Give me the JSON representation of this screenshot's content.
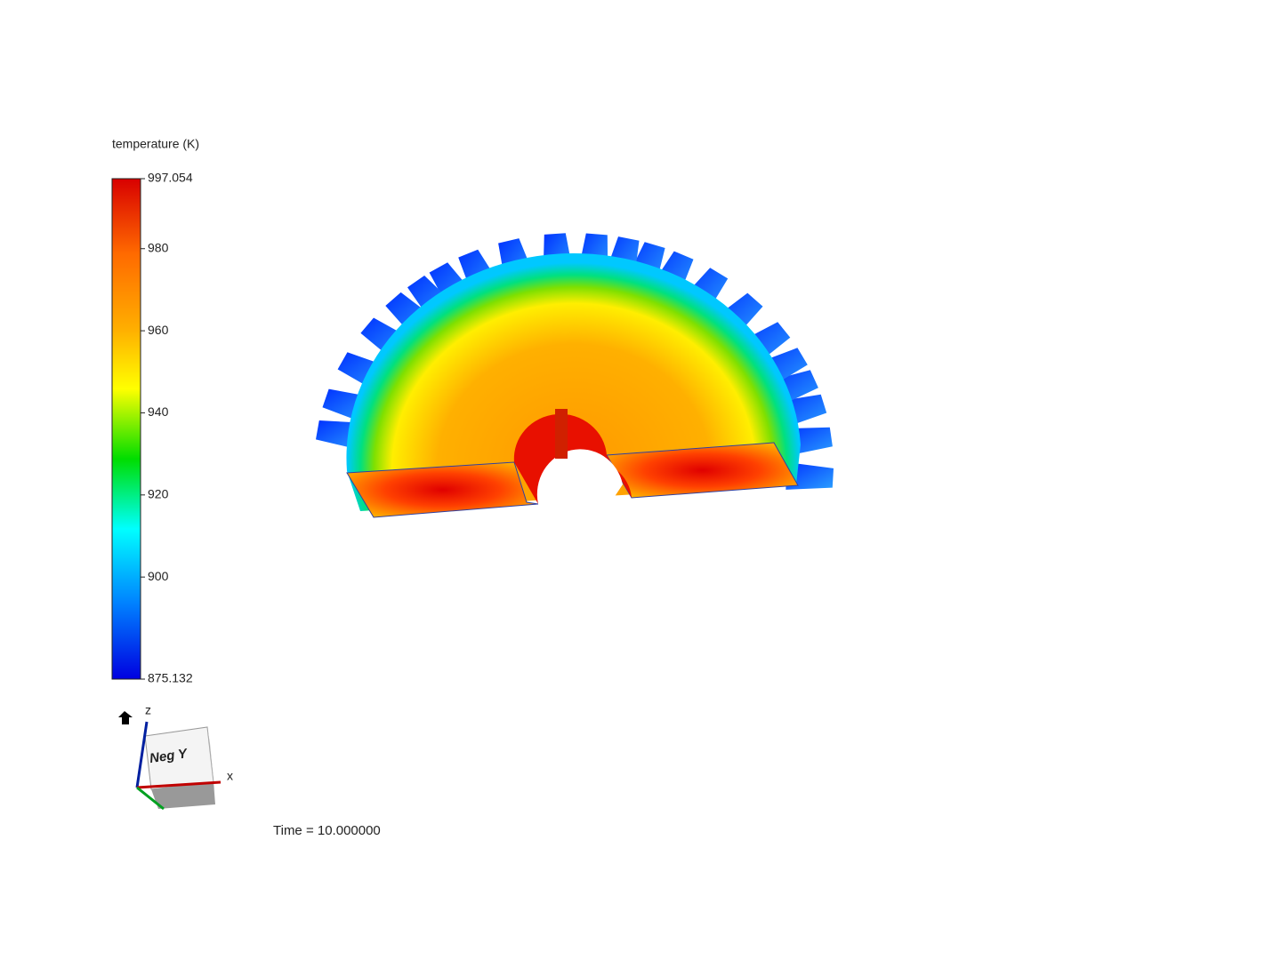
{
  "legend": {
    "title": "temperature (K)",
    "max": 997.054,
    "min": 875.132,
    "ticks": [
      980,
      960,
      940,
      920,
      900
    ]
  },
  "view_cube": {
    "face": "Neg Y",
    "z_axis": "z",
    "x_axis": "x"
  },
  "time_label": "Time = 10.000000"
}
